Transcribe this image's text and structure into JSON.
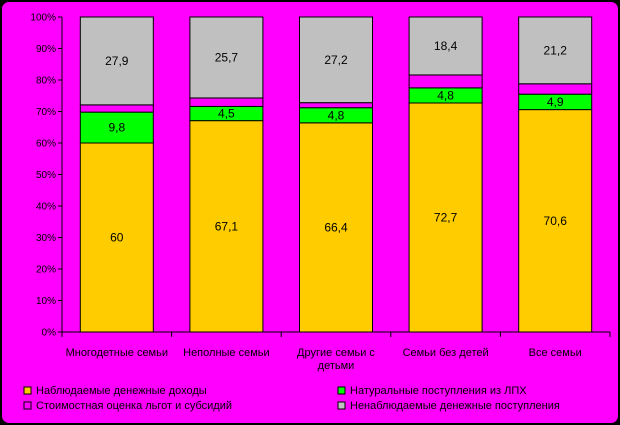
{
  "chart_data": {
    "type": "bar",
    "stacked": true,
    "categories": [
      "Многодетные семьи",
      "Неполные семьи",
      "Другие семьи с детьми",
      "Семьи без детей",
      "Все семьи"
    ],
    "series": [
      {
        "name": "Наблюдаемые денежные доходы",
        "values": [
          60,
          67.1,
          66.4,
          72.7,
          70.6
        ],
        "labels": [
          "60",
          "67,1",
          "66,4",
          "72,7",
          "70,6"
        ],
        "color": "#FFCC00"
      },
      {
        "name": "Натуральные поступления из ЛПХ",
        "values": [
          9.8,
          4.5,
          4.8,
          4.8,
          4.9
        ],
        "labels": [
          "9,8",
          "4,5",
          "4,8",
          "4,8",
          "4,9"
        ],
        "color": "#00FF00"
      },
      {
        "name": "Стоимостная оценка льгот и субсидий",
        "values": [
          2.3,
          2.7,
          1.6,
          4.1,
          3.3
        ],
        "labels": [
          "",
          "",
          "",
          "",
          ""
        ],
        "color": "#FF00FF"
      },
      {
        "name": "Ненаблюдаемые денежные поступления",
        "values": [
          27.9,
          25.7,
          27.2,
          18.4,
          21.2
        ],
        "labels": [
          "27,9",
          "25,7",
          "27,2",
          "18,4",
          "21,2"
        ],
        "color": "#C0C0C0"
      }
    ],
    "y_ticks": [
      "0%",
      "10%",
      "20%",
      "30%",
      "40%",
      "50%",
      "60%",
      "70%",
      "80%",
      "90%",
      "100%"
    ],
    "ylim": [
      0,
      100
    ],
    "grid": false,
    "legend_position": "bottom",
    "colors": {
      "plot_background": "#FF00FF",
      "page_background": "#FF00FF",
      "frame": "#000000"
    }
  }
}
